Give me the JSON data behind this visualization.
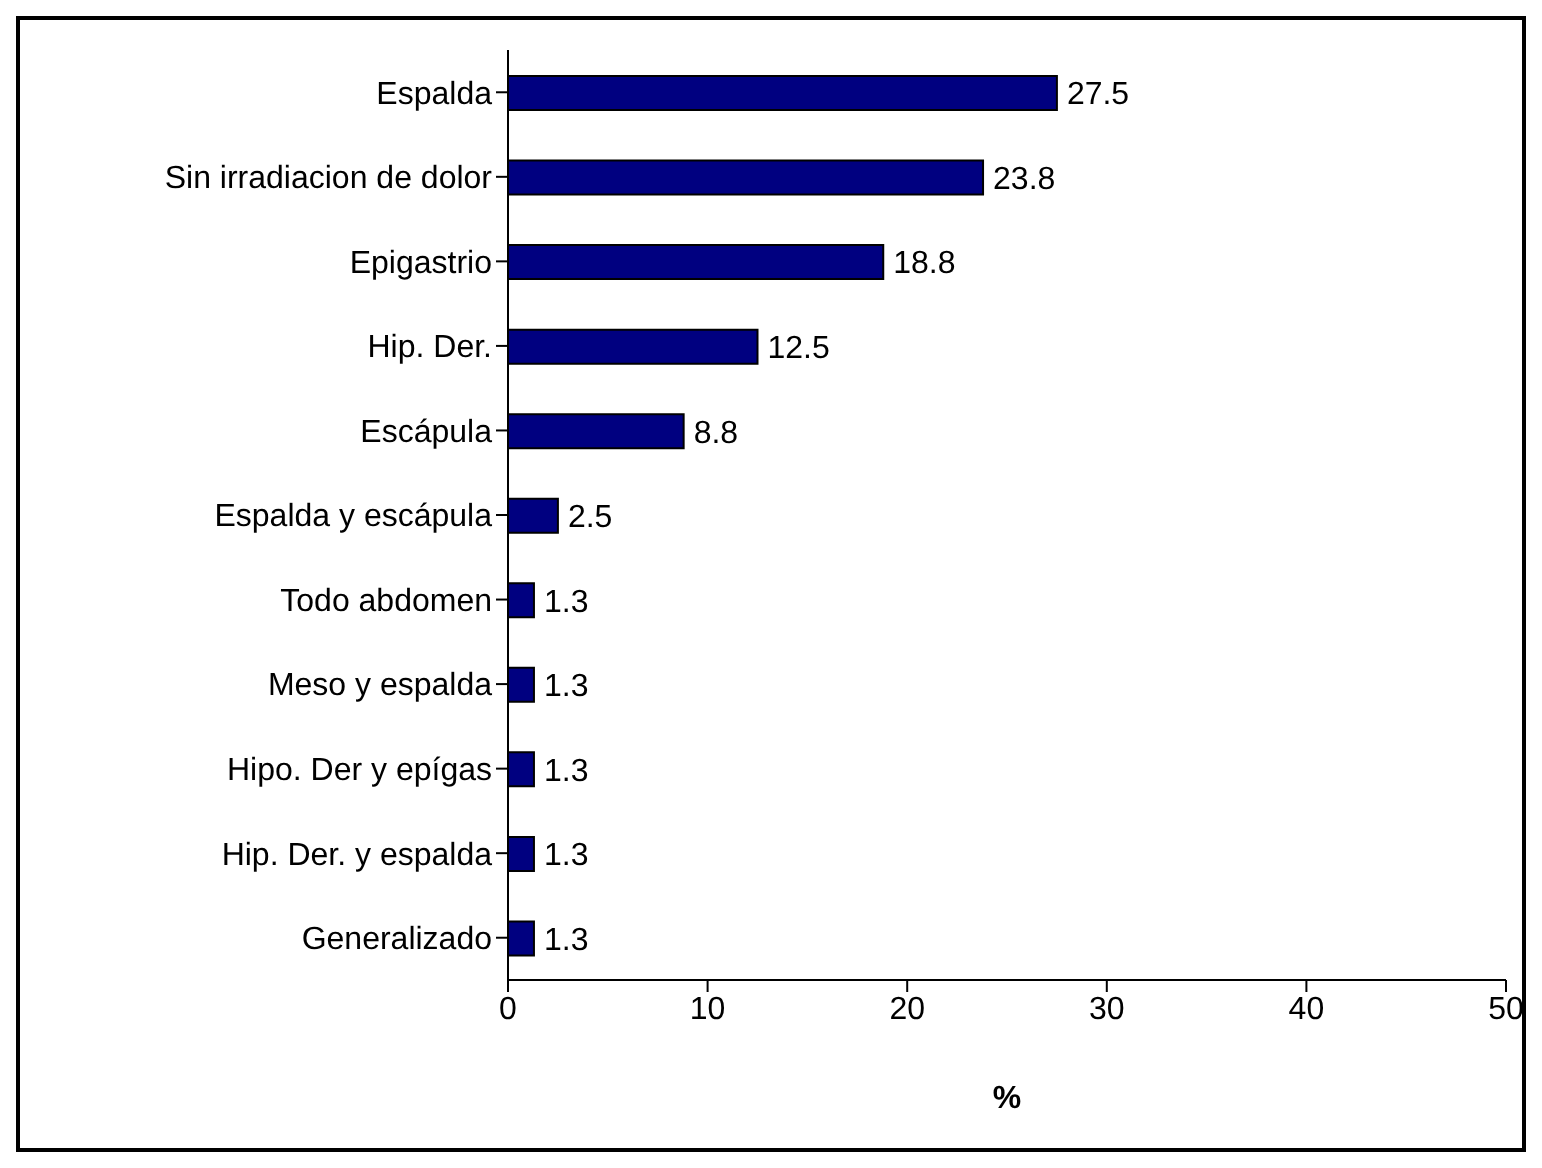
{
  "chart_data": {
    "type": "bar",
    "orientation": "horizontal",
    "xlabel": "%",
    "categories": [
      "Espalda",
      "Sin irradiacion de dolor",
      "Epigastrio",
      "Hip. Der.",
      "Escápula",
      "Espalda y escápula",
      "Todo abdomen",
      "Meso y espalda",
      "Hipo. Der y epígas",
      "Hip. Der. y espalda",
      "Generalizado"
    ],
    "values": [
      27.5,
      23.8,
      18.8,
      12.5,
      8.8,
      2.5,
      1.3,
      1.3,
      1.3,
      1.3,
      1.3
    ],
    "color": "#000080",
    "xlim": [
      0,
      50
    ],
    "xticks": [
      0,
      10,
      20,
      30,
      40,
      50
    ],
    "data_labels": true,
    "grid": false,
    "legend": false
  }
}
